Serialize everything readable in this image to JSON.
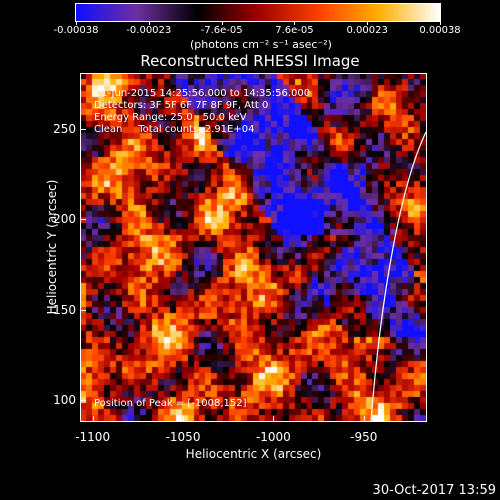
{
  "chart_data": {
    "type": "heatmap",
    "title": "Reconstructed RHESSI Image",
    "xlabel": "Heliocentric X (arcsec)",
    "ylabel": "Heliocentric Y (arcsec)",
    "xlim": [
      -1107,
      -915
    ],
    "ylim": [
      88,
      281
    ],
    "x_ticks": [
      "-1100",
      "-1050",
      "-1000",
      "-950"
    ],
    "x_tick_values": [
      -1100,
      -1050,
      -1000,
      -950
    ],
    "y_ticks": [
      "100",
      "150",
      "200",
      "250"
    ],
    "y_tick_values": [
      100,
      150,
      200,
      250
    ],
    "colorbar": {
      "range": [
        -0.00038,
        0.00038
      ],
      "tick_labels": [
        "-0.00038",
        "-0.00023",
        "-7.6e-05",
        "7.6e-05",
        "0.00023",
        "0.00038"
      ],
      "units": "(photons cm⁻² s⁻¹ asec⁻²)"
    },
    "annotations": {
      "time_range": "1-Jun-2015 14:25:56.000 to 14:35:56.000",
      "detectors": "Detectors: 3F 5F 6F 7F 8F 9F, Att 0",
      "energy": "Energy Range: 25.0 - 50.0 keV",
      "method": "Clean     Total counts: 2.91E+04",
      "peak": "Position of Peak = [-1008,152]"
    },
    "colors": {
      "background": "#000000",
      "colormap": [
        "#1010ff",
        "#7030a0",
        "#000000",
        "#a00000",
        "#ff4000",
        "#ffb000",
        "#ffffff"
      ]
    }
  },
  "footer": {
    "timestamp": "30-Oct-2017 13:59"
  }
}
